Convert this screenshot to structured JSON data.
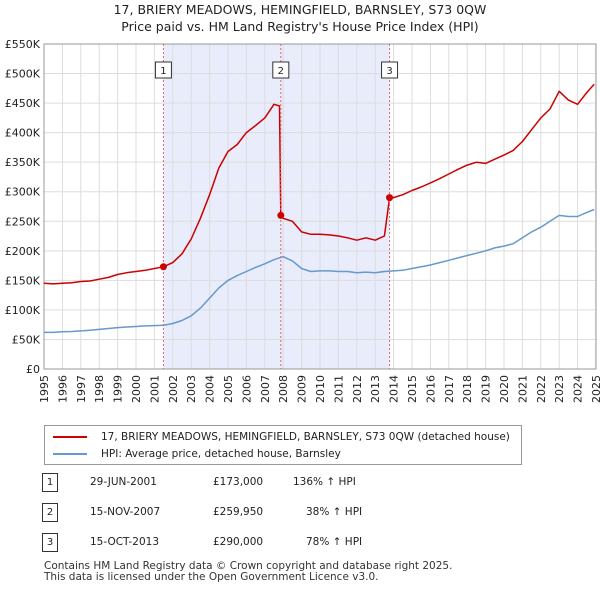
{
  "header": {
    "title_line1": "17, BRIERY MEADOWS, HEMINGFIELD, BARNSLEY, S73 0QW",
    "title_line2": "Price paid vs. HM Land Registry's House Price Index (HPI)"
  },
  "chart_data": {
    "type": "line",
    "title": "17, BRIERY MEADOWS, HEMINGFIELD, BARNSLEY, S73 0QW",
    "subtitle": "Price paid vs. HM Land Registry's House Price Index (HPI)",
    "xlabel": "",
    "ylabel": "",
    "xlim": [
      1995,
      2025
    ],
    "ylim": [
      0,
      550000
    ],
    "x_ticks": [
      1995,
      1996,
      1997,
      1998,
      1999,
      2000,
      2001,
      2002,
      2003,
      2004,
      2005,
      2006,
      2007,
      2008,
      2009,
      2010,
      2011,
      2012,
      2013,
      2014,
      2015,
      2016,
      2017,
      2018,
      2019,
      2020,
      2021,
      2022,
      2023,
      2024,
      2025
    ],
    "y_ticks": [
      0,
      50000,
      100000,
      150000,
      200000,
      250000,
      300000,
      350000,
      400000,
      450000,
      500000,
      550000
    ],
    "y_tick_labels": [
      "£0",
      "£50K",
      "£100K",
      "£150K",
      "£200K",
      "£250K",
      "£300K",
      "£350K",
      "£400K",
      "£450K",
      "£500K",
      "£550K"
    ],
    "grid": true,
    "series": [
      {
        "name": "17, BRIERY MEADOWS, HEMINGFIELD, BARNSLEY, S73 0QW (detached house)",
        "color": "#cc0000",
        "x": [
          1995.0,
          1995.5,
          1996.0,
          1996.5,
          1997.0,
          1997.5,
          1998.0,
          1998.5,
          1999.0,
          1999.5,
          2000.0,
          2000.5,
          2001.0,
          2001.49,
          2002.0,
          2002.5,
          2003.0,
          2003.5,
          2004.0,
          2004.5,
          2005.0,
          2005.5,
          2006.0,
          2006.5,
          2007.0,
          2007.5,
          2007.8,
          2007.87,
          2008.0,
          2008.5,
          2009.0,
          2009.5,
          2010.0,
          2010.5,
          2011.0,
          2011.5,
          2012.0,
          2012.5,
          2013.0,
          2013.5,
          2013.78,
          2014.0,
          2014.5,
          2015.0,
          2015.5,
          2016.0,
          2016.5,
          2017.0,
          2017.5,
          2018.0,
          2018.5,
          2019.0,
          2019.5,
          2020.0,
          2020.5,
          2021.0,
          2021.5,
          2022.0,
          2022.5,
          2023.0,
          2023.5,
          2024.0,
          2024.5,
          2024.9
        ],
        "values": [
          145000,
          144000,
          145000,
          146000,
          148000,
          149000,
          152000,
          155000,
          160000,
          163000,
          165000,
          167000,
          170000,
          173000,
          180000,
          195000,
          220000,
          255000,
          295000,
          340000,
          368000,
          380000,
          400000,
          412000,
          425000,
          448000,
          445000,
          259950,
          255000,
          250000,
          232000,
          228000,
          228000,
          227000,
          225000,
          222000,
          218000,
          222000,
          218000,
          225000,
          290000,
          290000,
          295000,
          302000,
          308000,
          315000,
          322000,
          330000,
          338000,
          345000,
          350000,
          348000,
          355000,
          362000,
          370000,
          385000,
          405000,
          425000,
          440000,
          470000,
          455000,
          448000,
          468000,
          482000
        ]
      },
      {
        "name": "HPI: Average price, detached house, Barnsley",
        "color": "#6699cc",
        "x": [
          1995.0,
          1995.5,
          1996.0,
          1996.5,
          1997.0,
          1997.5,
          1998.0,
          1998.5,
          1999.0,
          1999.5,
          2000.0,
          2000.5,
          2001.0,
          2001.5,
          2002.0,
          2002.5,
          2003.0,
          2003.5,
          2004.0,
          2004.5,
          2005.0,
          2005.5,
          2006.0,
          2006.5,
          2007.0,
          2007.5,
          2008.0,
          2008.5,
          2009.0,
          2009.5,
          2010.0,
          2010.5,
          2011.0,
          2011.5,
          2012.0,
          2012.5,
          2013.0,
          2013.5,
          2014.0,
          2014.5,
          2015.0,
          2015.5,
          2016.0,
          2016.5,
          2017.0,
          2017.5,
          2018.0,
          2018.5,
          2019.0,
          2019.5,
          2020.0,
          2020.5,
          2021.0,
          2021.5,
          2022.0,
          2022.5,
          2023.0,
          2023.5,
          2024.0,
          2024.5,
          2024.9
        ],
        "values": [
          62000,
          62000,
          63000,
          63500,
          64500,
          65500,
          67000,
          68500,
          70000,
          71000,
          72000,
          73000,
          73500,
          74000,
          77000,
          82000,
          90000,
          103000,
          120000,
          137000,
          150000,
          158000,
          165000,
          172000,
          178000,
          185000,
          190000,
          183000,
          170000,
          165000,
          166000,
          166000,
          165000,
          165000,
          163000,
          164000,
          163000,
          165000,
          166000,
          167000,
          170000,
          173000,
          176000,
          180000,
          184000,
          188000,
          192000,
          196000,
          200000,
          205000,
          208000,
          212000,
          222000,
          232000,
          240000,
          250000,
          260000,
          258000,
          258000,
          265000,
          270000
        ]
      }
    ],
    "sales": [
      {
        "id": "1",
        "year": 2001.49,
        "price": 173000,
        "date": "29-JUN-2001",
        "price_label": "£173,000",
        "hpi_label": "136% ↑ HPI"
      },
      {
        "id": "2",
        "year": 2007.87,
        "price": 259950,
        "date": "15-NOV-2007",
        "price_label": "£259,950",
        "hpi_label": "38% ↑ HPI"
      },
      {
        "id": "3",
        "year": 2013.78,
        "price": 290000,
        "date": "15-OCT-2013",
        "price_label": "£290,000",
        "hpi_label": "78% ↑ HPI"
      }
    ]
  },
  "legend": {
    "items": [
      {
        "label": "17, BRIERY MEADOWS, HEMINGFIELD, BARNSLEY, S73 0QW (detached house)",
        "color": "#cc0000"
      },
      {
        "label": "HPI: Average price, detached house, Barnsley",
        "color": "#6699cc"
      }
    ]
  },
  "footer": {
    "line1": "Contains HM Land Registry data © Crown copyright and database right 2025.",
    "line2": "This data is licensed under the Open Government Licence v3.0."
  }
}
